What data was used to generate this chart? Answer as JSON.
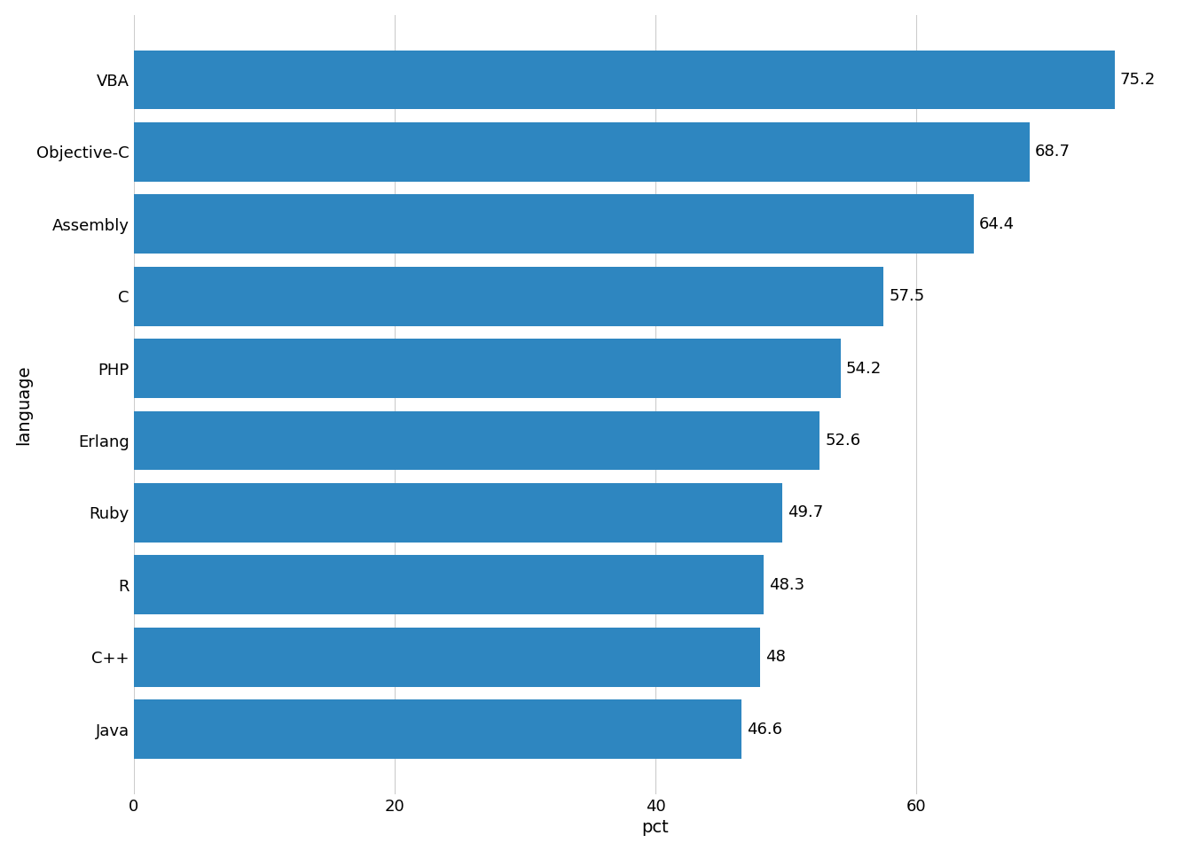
{
  "categories": [
    "Java",
    "C++",
    "R",
    "Ruby",
    "Erlang",
    "PHP",
    "C",
    "Assembly",
    "Objective-C",
    "VBA"
  ],
  "values": [
    46.6,
    48,
    48.3,
    49.7,
    52.6,
    54.2,
    57.5,
    64.4,
    68.7,
    75.2
  ],
  "labels": [
    "46.6",
    "48",
    "48.3",
    "49.7",
    "52.6",
    "54.2",
    "57.5",
    "64.4",
    "68.7",
    "75.2"
  ],
  "bar_color": "#2E86C0",
  "background_color": "#FFFFFF",
  "plot_bg_color": "#FFFFFF",
  "grid_color": "#CCCCCC",
  "xlabel": "pct",
  "ylabel": "language",
  "xlim": [
    0,
    80
  ],
  "xticks": [
    0,
    20,
    40,
    60
  ],
  "label_fontsize": 13,
  "axis_label_fontsize": 14,
  "tick_fontsize": 13,
  "bar_label_fontsize": 13,
  "bar_height": 0.82
}
